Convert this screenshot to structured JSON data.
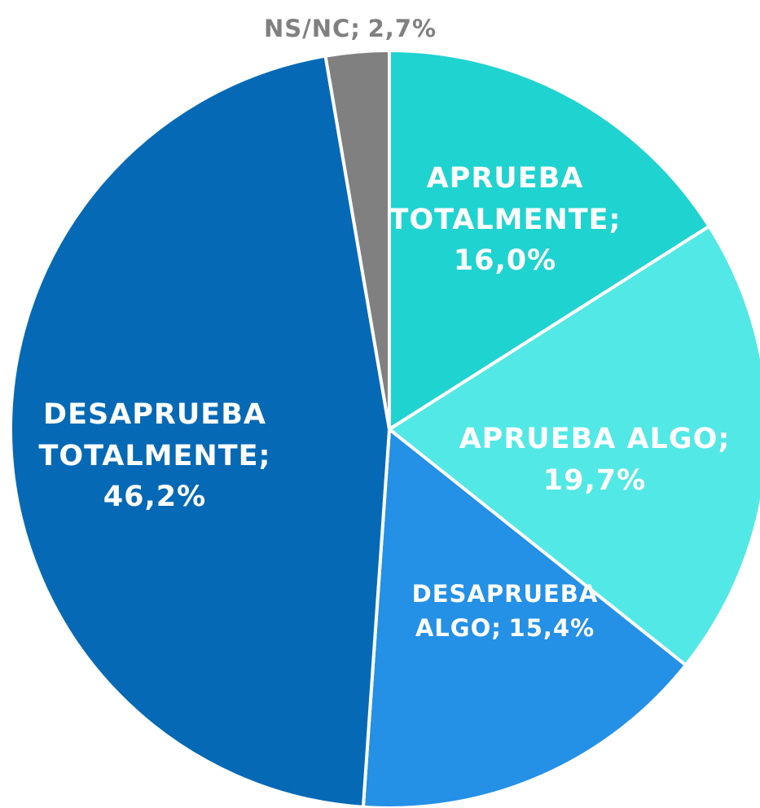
{
  "chart_data": {
    "type": "pie",
    "categories": [
      "APRUEBA TOTALMENTE;",
      "APRUEBA ALGO;",
      "DESAPRUEBA ALGO;",
      "DESAPRUEBA TOTALMENTE;",
      "NS/NC;"
    ],
    "values": [
      16.0,
      19.7,
      15.4,
      46.2,
      2.7
    ],
    "value_labels": [
      "16,0%",
      "19,7%",
      "15,4%",
      "46,2%",
      "2,7%"
    ],
    "colors": [
      "#1fd3d0",
      "#52e8e5",
      "#2490e6",
      "#0669b5",
      "#808080"
    ]
  }
}
